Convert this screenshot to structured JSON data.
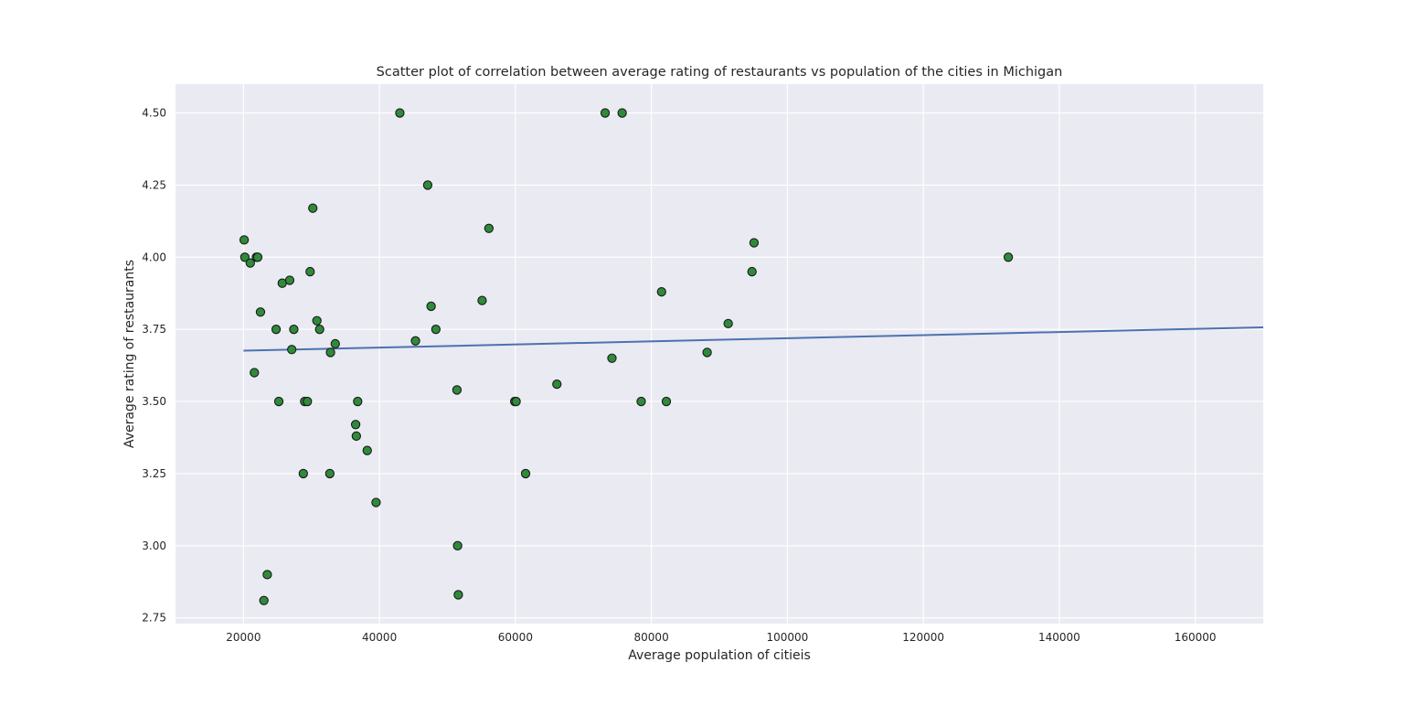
{
  "chart_data": {
    "type": "scatter",
    "title": "Scatter plot of correlation between average rating of restaurants vs population of the cities in Michigan",
    "xlabel": "Average population of citieis",
    "ylabel": "Average rating of restaurants",
    "xlim": [
      10000,
      170000
    ],
    "ylim": [
      2.73,
      4.6
    ],
    "xticks": [
      20000,
      40000,
      60000,
      80000,
      100000,
      120000,
      140000,
      160000
    ],
    "xtick_labels": [
      "20000",
      "40000",
      "60000",
      "80000",
      "100000",
      "120000",
      "140000",
      "160000"
    ],
    "yticks": [
      2.75,
      3.0,
      3.25,
      3.5,
      3.75,
      4.0,
      4.25,
      4.5
    ],
    "ytick_labels": [
      "2.75",
      "3.00",
      "3.25",
      "3.50",
      "3.75",
      "4.00",
      "4.25",
      "4.50"
    ],
    "grid": true,
    "legend": false,
    "colors": {
      "background": "#EAEAF2",
      "grid": "#FFFFFF",
      "point_fill": "#2E8B3A",
      "point_edge": "#1A1A1A",
      "trendline": "#4C72B0"
    },
    "series": [
      {
        "kind": "points",
        "x": [
          20100,
          20200,
          21000,
          21900,
          22100,
          21600,
          22500,
          23000,
          23500,
          24800,
          25200,
          25700,
          26800,
          27100,
          27400,
          28800,
          29000,
          29400,
          29800,
          30200,
          30800,
          31200,
          32700,
          32800,
          33500,
          36500,
          36600,
          36800,
          38200,
          39500,
          43000,
          45300,
          47100,
          47600,
          48300,
          51400,
          51500,
          51600,
          55100,
          56100,
          59900,
          60100,
          61500,
          66100,
          73200,
          74200,
          75700,
          78500,
          81500,
          82200,
          88200,
          91300,
          94800,
          95100,
          132500
        ],
        "y": [
          4.06,
          4.0,
          3.98,
          4.0,
          4.0,
          3.6,
          3.81,
          2.81,
          2.9,
          3.75,
          3.5,
          3.91,
          3.92,
          3.68,
          3.75,
          3.25,
          3.5,
          3.5,
          3.95,
          4.17,
          3.78,
          3.75,
          3.25,
          3.67,
          3.7,
          3.42,
          3.38,
          3.5,
          3.33,
          3.15,
          4.5,
          3.71,
          4.25,
          3.83,
          3.75,
          3.54,
          3.0,
          2.83,
          3.85,
          4.1,
          3.5,
          3.5,
          3.25,
          3.56,
          4.5,
          3.65,
          4.5,
          3.5,
          3.88,
          3.5,
          3.67,
          3.77,
          3.95,
          4.05,
          4.0
        ]
      },
      {
        "kind": "trendline",
        "x": [
          20000,
          170000
        ],
        "y": [
          3.676,
          3.757
        ]
      }
    ]
  }
}
